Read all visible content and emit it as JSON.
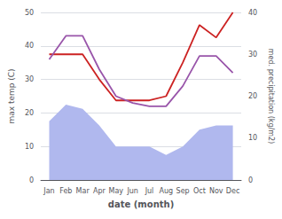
{
  "chart_data": {
    "type": "line",
    "categories": [
      "Jan",
      "Feb",
      "Mar",
      "Apr",
      "May",
      "Jun",
      "Jul",
      "Aug",
      "Sep",
      "Oct",
      "Nov",
      "Dec"
    ],
    "xlabel": "date (month)",
    "ylabel": "max temp (C)",
    "y2label": "med. precipitation (kg/m2)",
    "series": [
      {
        "type": "area",
        "axis": "y2",
        "color": "#b0b8ee",
        "values": [
          14,
          18,
          17,
          13,
          8,
          8,
          8,
          6,
          8,
          12,
          13,
          13
        ]
      },
      {
        "type": "line",
        "axis": "y2",
        "color": "#cc2222",
        "values": [
          30,
          30,
          30,
          24,
          19,
          19,
          19,
          20,
          28,
          37,
          34,
          40
        ]
      },
      {
        "type": "line",
        "color": "#9955aa",
        "values": [
          36,
          43,
          43,
          33,
          25,
          23,
          22,
          22,
          28,
          37,
          37,
          32
        ]
      }
    ],
    "ylim": [
      0,
      50
    ],
    "yticks": [
      0,
      10,
      20,
      30,
      40,
      50
    ],
    "y2lim": [
      0,
      40
    ],
    "y2ticks": [
      0,
      10,
      20,
      30,
      40
    ],
    "grid": true
  }
}
